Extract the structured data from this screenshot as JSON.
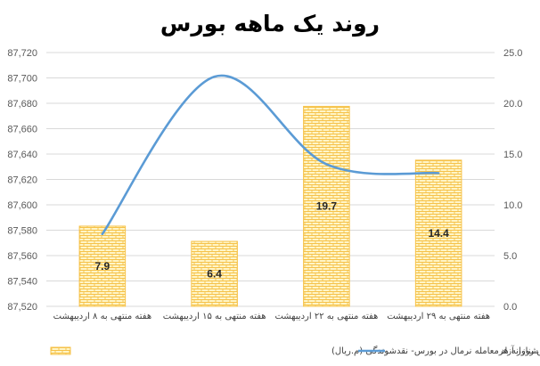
{
  "chart_data": {
    "type": "bar",
    "title": "روند یک ماهه بورس",
    "categories": [
      "هفته منتهی به ۸ اردیبهشت",
      "هفته منتهی به ۱۵ اردیبهشت",
      "هفته منتهی به ۲۲ اردیبهشت",
      "هفته منتهی به ۲۹ اردیبهشت"
    ],
    "series": [
      {
        "name": "متوسط ارزش روزانه هرمعامله نرمال در بورس- نقدشوندگی (م.ریال)",
        "type": "bar",
        "axis": "right",
        "values": [
          7.9,
          6.4,
          19.7,
          14.4
        ],
        "data_labels": [
          "7.9",
          "6.4",
          "19.7",
          "14.4"
        ],
        "color": "#fde9a0"
      },
      {
        "name": "شاخص شناور آزاد",
        "type": "line",
        "axis": "left",
        "smooth": true,
        "values": [
          87577,
          87701,
          87632,
          87625
        ],
        "color": "#5b9bd5"
      }
    ],
    "left_axis": {
      "ylim": [
        87520,
        87720
      ],
      "ticks": [
        "87,520",
        "87,540",
        "87,560",
        "87,580",
        "87,600",
        "87,620",
        "87,640",
        "87,660",
        "87,680",
        "87,700",
        "87,720"
      ]
    },
    "right_axis": {
      "ylim": [
        0,
        25
      ],
      "ticks": [
        "0.0",
        "5.0",
        "10.0",
        "15.0",
        "20.0",
        "25.0"
      ]
    },
    "grid": true,
    "legend_position": "bottom"
  }
}
